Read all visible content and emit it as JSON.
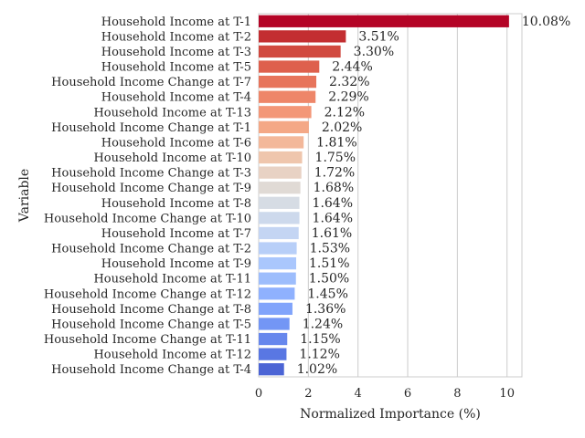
{
  "chart_data": {
    "type": "bar",
    "orientation": "horizontal",
    "xlabel": "Normalized Importance (%)",
    "ylabel": "Variable",
    "xlim": [
      0,
      10.6
    ],
    "xticks": [
      0,
      2,
      4,
      6,
      8,
      10
    ],
    "grid": "vertical",
    "value_suffix": "%",
    "bars": [
      {
        "label": "Household Income at T-1",
        "value": 10.08,
        "value_label": "10.08%",
        "color": "#b40426"
      },
      {
        "label": "Household Income at T-2",
        "value": 3.51,
        "value_label": "3.51%",
        "color": "#c32e31"
      },
      {
        "label": "Household Income at T-3",
        "value": 3.3,
        "value_label": "3.30%",
        "color": "#d1493f"
      },
      {
        "label": "Household Income at T-5",
        "value": 2.44,
        "value_label": "2.44%",
        "color": "#de604d"
      },
      {
        "label": "Household Income Change at T-7",
        "value": 2.32,
        "value_label": "2.32%",
        "color": "#e7745b"
      },
      {
        "label": "Household Income at T-4",
        "value": 2.29,
        "value_label": "2.29%",
        "color": "#ee8669"
      },
      {
        "label": "Household Income at T-13",
        "value": 2.12,
        "value_label": "2.12%",
        "color": "#f39778"
      },
      {
        "label": "Household Income Change at T-1",
        "value": 2.02,
        "value_label": "2.02%",
        "color": "#f4a886"
      },
      {
        "label": "Household Income at T-6",
        "value": 1.81,
        "value_label": "1.81%",
        "color": "#f3b89a"
      },
      {
        "label": "Household Income at T-10",
        "value": 1.75,
        "value_label": "1.75%",
        "color": "#efc6ad"
      },
      {
        "label": "Household Income Change at T-3",
        "value": 1.72,
        "value_label": "1.72%",
        "color": "#e8d2c4"
      },
      {
        "label": "Household Income Change at T-9",
        "value": 1.68,
        "value_label": "1.68%",
        "color": "#e0dad5"
      },
      {
        "label": "Household Income at T-8",
        "value": 1.64,
        "value_label": "1.64%",
        "color": "#d6dce4"
      },
      {
        "label": "Household Income Change at T-10",
        "value": 1.64,
        "value_label": "1.64%",
        "color": "#cdd9ec"
      },
      {
        "label": "Household Income at T-7",
        "value": 1.61,
        "value_label": "1.61%",
        "color": "#c4d5f3"
      },
      {
        "label": "Household Income Change at T-2",
        "value": 1.53,
        "value_label": "1.53%",
        "color": "#b8cff8"
      },
      {
        "label": "Household Income at T-9",
        "value": 1.51,
        "value_label": "1.51%",
        "color": "#aac7fd"
      },
      {
        "label": "Household Income at T-11",
        "value": 1.5,
        "value_label": "1.50%",
        "color": "#9dbdfc"
      },
      {
        "label": "Household Income Change at T-12",
        "value": 1.45,
        "value_label": "1.45%",
        "color": "#8fb1fe"
      },
      {
        "label": "Household Income Change at T-8",
        "value": 1.36,
        "value_label": "1.36%",
        "color": "#81a4fb"
      },
      {
        "label": "Household Income Change at T-5",
        "value": 1.24,
        "value_label": "1.24%",
        "color": "#7396f5"
      },
      {
        "label": "Household Income Change at T-11",
        "value": 1.15,
        "value_label": "1.15%",
        "color": "#6687ed"
      },
      {
        "label": "Household Income at T-12",
        "value": 1.12,
        "value_label": "1.12%",
        "color": "#5977e3"
      },
      {
        "label": "Household Income Change at T-4",
        "value": 1.02,
        "value_label": "1.02%",
        "color": "#4b64d5"
      }
    ]
  }
}
